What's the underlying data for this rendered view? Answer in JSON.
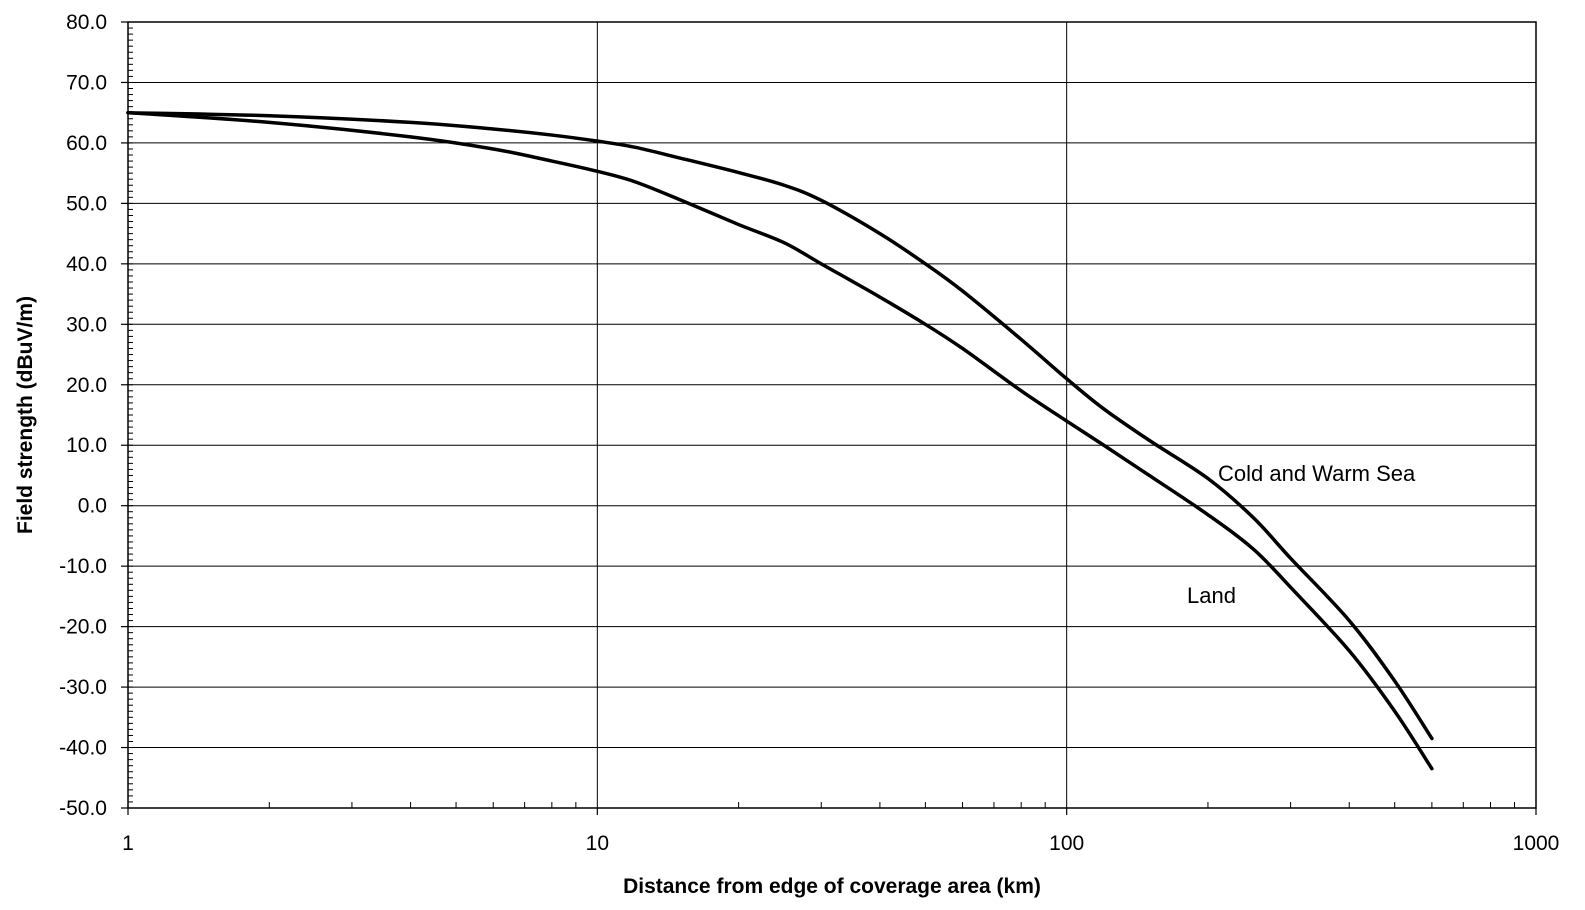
{
  "chart_data": {
    "type": "line",
    "title": "",
    "xlabel": "Distance from edge of coverage area (km)",
    "ylabel": "Field strength (dBuV/m)",
    "xscale": "log",
    "xlim": [
      1,
      1000
    ],
    "ylim": [
      -50,
      80
    ],
    "grid": true,
    "legend": "none",
    "x_ticks": [
      1,
      10,
      100,
      1000
    ],
    "x_tick_labels": [
      "1",
      "10",
      "100",
      "1000"
    ],
    "y_ticks": [
      80,
      70,
      60,
      50,
      40,
      30,
      20,
      10,
      0,
      -10,
      -20,
      -30,
      -40,
      -50
    ],
    "y_tick_labels": [
      "80.0",
      "70.0",
      "60.0",
      "50.0",
      "40.0",
      "30.0",
      "20.0",
      "10.0",
      "0.0",
      "-10.0",
      "-20.0",
      "-30.0",
      "-40.0",
      "-50.0"
    ],
    "line_color": "#000000",
    "series": [
      {
        "annotation": "Cold and Warm Sea",
        "points": [
          [
            1,
            65
          ],
          [
            2,
            64.5
          ],
          [
            4,
            63.4
          ],
          [
            6,
            62.3
          ],
          [
            8,
            61.3
          ],
          [
            10,
            60.3
          ],
          [
            12,
            59.3
          ],
          [
            15,
            57.5
          ],
          [
            20,
            55.1
          ],
          [
            25,
            53.0
          ],
          [
            30,
            50.5
          ],
          [
            40,
            45.0
          ],
          [
            50,
            40.0
          ],
          [
            60,
            35.5
          ],
          [
            80,
            27.5
          ],
          [
            100,
            21.0
          ],
          [
            120,
            16.0
          ],
          [
            150,
            10.8
          ],
          [
            200,
            4.5
          ],
          [
            250,
            -2.0
          ],
          [
            300,
            -8.7
          ],
          [
            400,
            -19.0
          ],
          [
            500,
            -29.0
          ],
          [
            600,
            -38.5
          ]
        ]
      },
      {
        "annotation": "Land",
        "points": [
          [
            1,
            65
          ],
          [
            2,
            63.4
          ],
          [
            4,
            61.0
          ],
          [
            6,
            59.0
          ],
          [
            8,
            57.0
          ],
          [
            10,
            55.3
          ],
          [
            12,
            53.6
          ],
          [
            15,
            50.6
          ],
          [
            20,
            46.5
          ],
          [
            25,
            43.5
          ],
          [
            30,
            40.0
          ],
          [
            40,
            34.5
          ],
          [
            50,
            30.0
          ],
          [
            60,
            26.0
          ],
          [
            80,
            19.0
          ],
          [
            100,
            14.0
          ],
          [
            120,
            10.0
          ],
          [
            150,
            5.0
          ],
          [
            200,
            -1.5
          ],
          [
            250,
            -7.2
          ],
          [
            300,
            -13.5
          ],
          [
            400,
            -24.0
          ],
          [
            500,
            -34.0
          ],
          [
            600,
            -43.5
          ]
        ]
      }
    ]
  }
}
